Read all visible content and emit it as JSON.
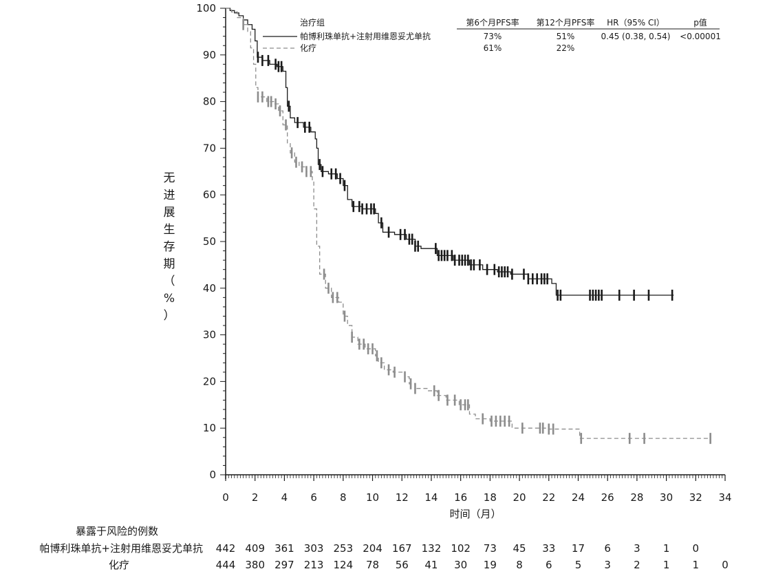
{
  "chart_data": {
    "type": "line",
    "subtype": "kaplan-meier",
    "title": "",
    "xlabel": "时间（月）",
    "ylabel_chars": [
      "无",
      "进",
      "展",
      "生",
      "存",
      "期",
      "（",
      "%",
      "）"
    ],
    "xlim": [
      0,
      34
    ],
    "ylim": [
      0,
      100
    ],
    "x_ticks": [
      0,
      2,
      4,
      6,
      8,
      10,
      12,
      14,
      16,
      18,
      20,
      22,
      24,
      26,
      28,
      30,
      32,
      34
    ],
    "y_ticks": [
      0,
      10,
      20,
      30,
      40,
      50,
      60,
      70,
      80,
      90,
      100
    ],
    "legend": {
      "position": "top-right",
      "header": {
        "group": "治疗组",
        "pfs6": "第6个月PFS率",
        "pfs12": "第12个月PFS率",
        "hr": "HR（95% CI）",
        "p": "p值"
      },
      "rows": [
        {
          "name": "帕博利珠单抗+注射用维恩妥尤单抗",
          "style": "solid",
          "pfs6": "73%",
          "pfs12": "51%",
          "hr": "0.45 (0.38, 0.54)",
          "p": "<0.00001"
        },
        {
          "name": "化疗",
          "style": "dashed",
          "pfs6": "61%",
          "pfs12": "22%",
          "hr": "",
          "p": ""
        }
      ]
    },
    "series": [
      {
        "name": "帕博利珠单抗+注射用维恩妥尤单抗",
        "color": "#1a1a1a",
        "dash": "solid",
        "steps": [
          [
            0,
            100
          ],
          [
            0.3,
            99.5
          ],
          [
            0.6,
            99
          ],
          [
            0.9,
            98.4
          ],
          [
            1.2,
            97.5
          ],
          [
            1.5,
            96.5
          ],
          [
            1.8,
            95.5
          ],
          [
            2.0,
            93
          ],
          [
            2.15,
            89.5
          ],
          [
            2.5,
            88.8
          ],
          [
            3.0,
            88
          ],
          [
            3.5,
            87.5
          ],
          [
            3.9,
            86.5
          ],
          [
            4.1,
            83
          ],
          [
            4.2,
            79
          ],
          [
            4.4,
            76.5
          ],
          [
            4.7,
            75.5
          ],
          [
            5.3,
            74.5
          ],
          [
            5.8,
            73.5
          ],
          [
            6.1,
            72
          ],
          [
            6.2,
            70
          ],
          [
            6.3,
            66.5
          ],
          [
            6.5,
            65
          ],
          [
            7.0,
            64.5
          ],
          [
            7.6,
            63.5
          ],
          [
            8.0,
            62
          ],
          [
            8.3,
            59
          ],
          [
            8.6,
            57.5
          ],
          [
            9.3,
            57
          ],
          [
            10.2,
            56
          ],
          [
            10.4,
            54
          ],
          [
            10.7,
            52
          ],
          [
            11.5,
            51.5
          ],
          [
            12.3,
            50.5
          ],
          [
            12.9,
            49
          ],
          [
            13.3,
            48.5
          ],
          [
            14.4,
            47
          ],
          [
            15.5,
            46
          ],
          [
            16.6,
            45
          ],
          [
            17.5,
            44
          ],
          [
            18.5,
            43.5
          ],
          [
            19.4,
            43
          ],
          [
            20.6,
            42
          ],
          [
            22.2,
            41
          ],
          [
            22.5,
            38.5
          ],
          [
            30.5,
            38.5
          ]
        ],
        "censor_x": [
          2.2,
          2.5,
          2.9,
          3.4,
          3.6,
          3.8,
          4.3,
          4.9,
          5.4,
          5.7,
          6.4,
          6.6,
          7.2,
          7.5,
          7.8,
          8.1,
          8.7,
          9.1,
          9.3,
          9.6,
          9.9,
          10.1,
          10.6,
          11.1,
          11.9,
          12.2,
          12.5,
          12.7,
          12.9,
          13.1,
          14.3,
          14.5,
          14.7,
          14.9,
          15.1,
          15.4,
          15.6,
          15.9,
          16.1,
          16.3,
          16.5,
          16.7,
          16.9,
          17.3,
          17.8,
          18.3,
          18.6,
          18.8,
          19.0,
          19.2,
          19.5,
          20.3,
          20.6,
          20.9,
          21.2,
          21.5,
          21.7,
          21.9,
          22.6,
          22.8,
          24.8,
          25.0,
          25.2,
          25.4,
          25.6,
          26.8,
          27.8,
          28.8,
          30.4
        ],
        "at_risk": [
          442,
          409,
          361,
          303,
          253,
          204,
          167,
          132,
          102,
          73,
          45,
          33,
          17,
          6,
          3,
          1,
          0
        ]
      },
      {
        "name": "化疗",
        "color": "#8c8c8c",
        "dash": "dashed",
        "steps": [
          [
            0,
            100
          ],
          [
            0.4,
            99.2
          ],
          [
            0.8,
            98
          ],
          [
            1.2,
            96.5
          ],
          [
            1.5,
            95
          ],
          [
            1.7,
            91.5
          ],
          [
            1.9,
            88
          ],
          [
            2.05,
            83
          ],
          [
            2.2,
            81
          ],
          [
            2.8,
            80
          ],
          [
            3.3,
            79.5
          ],
          [
            3.6,
            78
          ],
          [
            3.9,
            75
          ],
          [
            4.2,
            71
          ],
          [
            4.4,
            69
          ],
          [
            4.7,
            67
          ],
          [
            5.0,
            66
          ],
          [
            5.5,
            65
          ],
          [
            5.9,
            63
          ],
          [
            6.0,
            57
          ],
          [
            6.2,
            49
          ],
          [
            6.4,
            43
          ],
          [
            6.8,
            40
          ],
          [
            7.2,
            38
          ],
          [
            7.7,
            37
          ],
          [
            8.0,
            34
          ],
          [
            8.3,
            32
          ],
          [
            8.6,
            29.5
          ],
          [
            9.0,
            28
          ],
          [
            9.5,
            27
          ],
          [
            10.2,
            25.5
          ],
          [
            10.4,
            24
          ],
          [
            10.8,
            22.5
          ],
          [
            11.4,
            22
          ],
          [
            12.2,
            21
          ],
          [
            12.5,
            19.5
          ],
          [
            12.9,
            18.5
          ],
          [
            13.8,
            18
          ],
          [
            14.4,
            17
          ],
          [
            15.0,
            16
          ],
          [
            15.9,
            15
          ],
          [
            16.6,
            13
          ],
          [
            17.0,
            12
          ],
          [
            18.0,
            11.5
          ],
          [
            19.5,
            10
          ],
          [
            21.9,
            9.8
          ],
          [
            24.1,
            7.8
          ],
          [
            33.0,
            7.8
          ]
        ],
        "censor_x": [
          1.2,
          2.2,
          2.5,
          2.9,
          3.1,
          3.4,
          3.7,
          4.1,
          4.5,
          4.8,
          5.2,
          5.5,
          5.8,
          6.7,
          7.0,
          7.3,
          7.6,
          8.1,
          8.6,
          9.1,
          9.4,
          9.7,
          10.0,
          10.3,
          10.6,
          11.1,
          11.5,
          12.2,
          12.6,
          12.9,
          14.2,
          14.5,
          15.1,
          15.6,
          16.0,
          16.3,
          16.5,
          17.5,
          18.1,
          18.4,
          18.7,
          19.0,
          19.3,
          20.2,
          21.4,
          21.6,
          22.0,
          22.3,
          24.2,
          27.5,
          28.5,
          33.0
        ],
        "at_risk": [
          444,
          380,
          297,
          213,
          124,
          78,
          56,
          41,
          30,
          19,
          8,
          6,
          5,
          3,
          2,
          1,
          1,
          0
        ]
      }
    ],
    "risk_table": {
      "title": "暴露于风险的例数",
      "rows": [
        {
          "label": "帕博利珠单抗+注射用维恩妥尤单抗",
          "values": [
            442,
            409,
            361,
            303,
            253,
            204,
            167,
            132,
            102,
            73,
            45,
            33,
            17,
            6,
            3,
            1,
            0
          ]
        },
        {
          "label": "化疗",
          "values": [
            444,
            380,
            297,
            213,
            124,
            78,
            56,
            41,
            30,
            19,
            8,
            6,
            5,
            3,
            2,
            1,
            1,
            0
          ]
        }
      ]
    }
  }
}
